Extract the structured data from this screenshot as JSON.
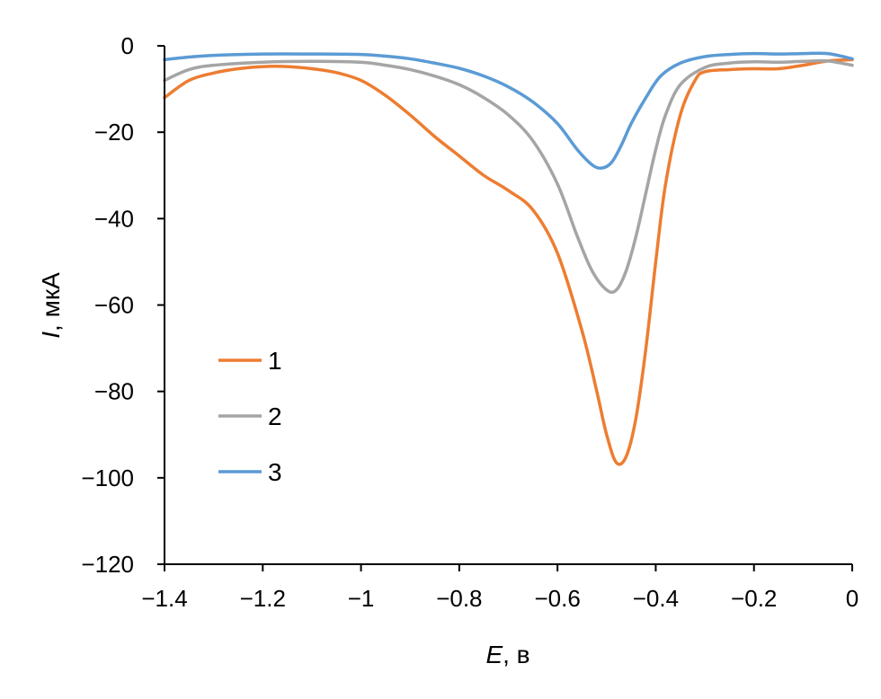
{
  "chart_data": {
    "type": "line",
    "xlabel": {
      "var": "E",
      "unit": ", в"
    },
    "ylabel": {
      "var": "I",
      "unit": ",  мкА"
    },
    "xlim": [
      -1.4,
      0
    ],
    "ylim": [
      -120,
      0
    ],
    "x_ticks": [
      {
        "value": -1.4,
        "label": "−1.4"
      },
      {
        "value": -1.2,
        "label": "−1.2"
      },
      {
        "value": -1.0,
        "label": "−1"
      },
      {
        "value": -0.8,
        "label": "−0.8"
      },
      {
        "value": -0.6,
        "label": "−0.6"
      },
      {
        "value": -0.4,
        "label": "−0.4"
      },
      {
        "value": -0.2,
        "label": "−0.2"
      },
      {
        "value": 0.0,
        "label": "0"
      }
    ],
    "y_ticks": [
      {
        "value": 0,
        "label": "0"
      },
      {
        "value": -20,
        "label": "−20"
      },
      {
        "value": -40,
        "label": "−40"
      },
      {
        "value": -60,
        "label": "−60"
      },
      {
        "value": -80,
        "label": "−80"
      },
      {
        "value": -100,
        "label": "−100"
      },
      {
        "value": -120,
        "label": "−120"
      }
    ],
    "grid": false,
    "legend_position": "left-middle",
    "series": [
      {
        "name": "1",
        "color": "#ED7D31",
        "points": [
          [
            -1.4,
            -12
          ],
          [
            -1.35,
            -8
          ],
          [
            -1.3,
            -6.3
          ],
          [
            -1.25,
            -5.3
          ],
          [
            -1.2,
            -4.8
          ],
          [
            -1.15,
            -4.8
          ],
          [
            -1.1,
            -5.3
          ],
          [
            -1.05,
            -6.2
          ],
          [
            -1.0,
            -8.0
          ],
          [
            -0.95,
            -11.5
          ],
          [
            -0.9,
            -16
          ],
          [
            -0.85,
            -21
          ],
          [
            -0.8,
            -25.5
          ],
          [
            -0.75,
            -30
          ],
          [
            -0.7,
            -33.5
          ],
          [
            -0.65,
            -38
          ],
          [
            -0.6,
            -48
          ],
          [
            -0.55,
            -66
          ],
          [
            -0.52,
            -80
          ],
          [
            -0.5,
            -90
          ],
          [
            -0.48,
            -96.5
          ],
          [
            -0.46,
            -95
          ],
          [
            -0.44,
            -86
          ],
          [
            -0.42,
            -70
          ],
          [
            -0.4,
            -50
          ],
          [
            -0.38,
            -32
          ],
          [
            -0.35,
            -16
          ],
          [
            -0.32,
            -8
          ],
          [
            -0.3,
            -6
          ],
          [
            -0.25,
            -5.5
          ],
          [
            -0.2,
            -5.3
          ],
          [
            -0.15,
            -5.3
          ],
          [
            -0.1,
            -4.5
          ],
          [
            -0.05,
            -3.5
          ],
          [
            0.0,
            -3.2
          ]
        ]
      },
      {
        "name": "2",
        "color": "#A5A5A5",
        "points": [
          [
            -1.4,
            -8
          ],
          [
            -1.35,
            -5.5
          ],
          [
            -1.3,
            -4.5
          ],
          [
            -1.2,
            -3.8
          ],
          [
            -1.1,
            -3.6
          ],
          [
            -1.0,
            -3.8
          ],
          [
            -0.95,
            -4.5
          ],
          [
            -0.9,
            -5.5
          ],
          [
            -0.85,
            -7
          ],
          [
            -0.8,
            -9
          ],
          [
            -0.75,
            -12
          ],
          [
            -0.7,
            -16
          ],
          [
            -0.65,
            -22
          ],
          [
            -0.6,
            -32
          ],
          [
            -0.56,
            -44
          ],
          [
            -0.53,
            -52
          ],
          [
            -0.5,
            -56.5
          ],
          [
            -0.48,
            -56.5
          ],
          [
            -0.46,
            -52
          ],
          [
            -0.44,
            -44
          ],
          [
            -0.42,
            -34
          ],
          [
            -0.4,
            -24
          ],
          [
            -0.38,
            -16
          ],
          [
            -0.35,
            -9
          ],
          [
            -0.3,
            -5
          ],
          [
            -0.25,
            -4
          ],
          [
            -0.2,
            -3.7
          ],
          [
            -0.15,
            -3.8
          ],
          [
            -0.1,
            -3.6
          ],
          [
            -0.05,
            -3.5
          ],
          [
            0.0,
            -4.5
          ]
        ]
      },
      {
        "name": "3",
        "color": "#5B9BD5",
        "points": [
          [
            -1.4,
            -3.2
          ],
          [
            -1.35,
            -2.6
          ],
          [
            -1.3,
            -2.2
          ],
          [
            -1.2,
            -1.9
          ],
          [
            -1.1,
            -1.9
          ],
          [
            -1.0,
            -2.0
          ],
          [
            -0.95,
            -2.4
          ],
          [
            -0.9,
            -3
          ],
          [
            -0.85,
            -4
          ],
          [
            -0.8,
            -5.2
          ],
          [
            -0.75,
            -7
          ],
          [
            -0.7,
            -9.5
          ],
          [
            -0.65,
            -13
          ],
          [
            -0.6,
            -18
          ],
          [
            -0.56,
            -24
          ],
          [
            -0.53,
            -27.5
          ],
          [
            -0.51,
            -28.3
          ],
          [
            -0.49,
            -27
          ],
          [
            -0.47,
            -23
          ],
          [
            -0.45,
            -18
          ],
          [
            -0.42,
            -12
          ],
          [
            -0.39,
            -7
          ],
          [
            -0.35,
            -4
          ],
          [
            -0.3,
            -2.5
          ],
          [
            -0.25,
            -2
          ],
          [
            -0.2,
            -1.8
          ],
          [
            -0.15,
            -1.9
          ],
          [
            -0.1,
            -1.8
          ],
          [
            -0.05,
            -1.8
          ],
          [
            0.0,
            -3
          ]
        ]
      }
    ]
  }
}
